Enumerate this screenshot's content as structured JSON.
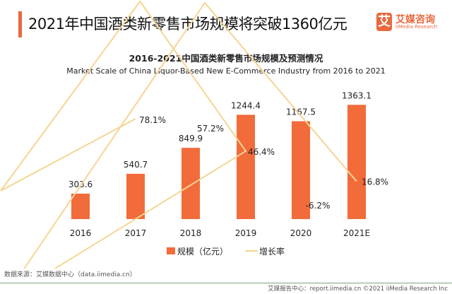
{
  "header": {
    "title": "2021年中国酒类新零售市场规模将突破1360亿元",
    "logo_mark": "艾",
    "logo_cn": "艾媒咨询",
    "logo_en": "iiMedia Research"
  },
  "chart_data": {
    "type": "bar",
    "title": "2016-2021中国酒类新零售市场规模及预测情况",
    "subtitle": "Market Scale of China  Liquor-Based New E-Commerce Industry from 2016 to 2021",
    "categories": [
      "2016",
      "2017",
      "2018",
      "2019",
      "2020",
      "2021E"
    ],
    "series": [
      {
        "name": "规模（亿元）",
        "type": "bar",
        "color": "#f26b3a",
        "values": [
          303.6,
          540.7,
          849.9,
          1244.4,
          1167.5,
          1363.1
        ],
        "labels": [
          "303.6",
          "540.7",
          "849.9",
          "1244.4",
          "1167.5",
          "1363.1"
        ]
      },
      {
        "name": "增长率",
        "type": "line",
        "color": "#f5d591",
        "values": [
          null,
          78.1,
          57.2,
          46.4,
          -6.2,
          16.8
        ],
        "labels": [
          "",
          "78.1%",
          "57.2%",
          "46.4%",
          "-6.2%",
          "16.8%"
        ]
      }
    ],
    "legend": "bottom",
    "grid": false
  },
  "footer": {
    "source": "数据来源：艾媒数据中心（data.iimedia.cn）",
    "credit": "艾媒报告中心：report.iimedia.cn   ©2021  iiMedia Research  Inc"
  }
}
